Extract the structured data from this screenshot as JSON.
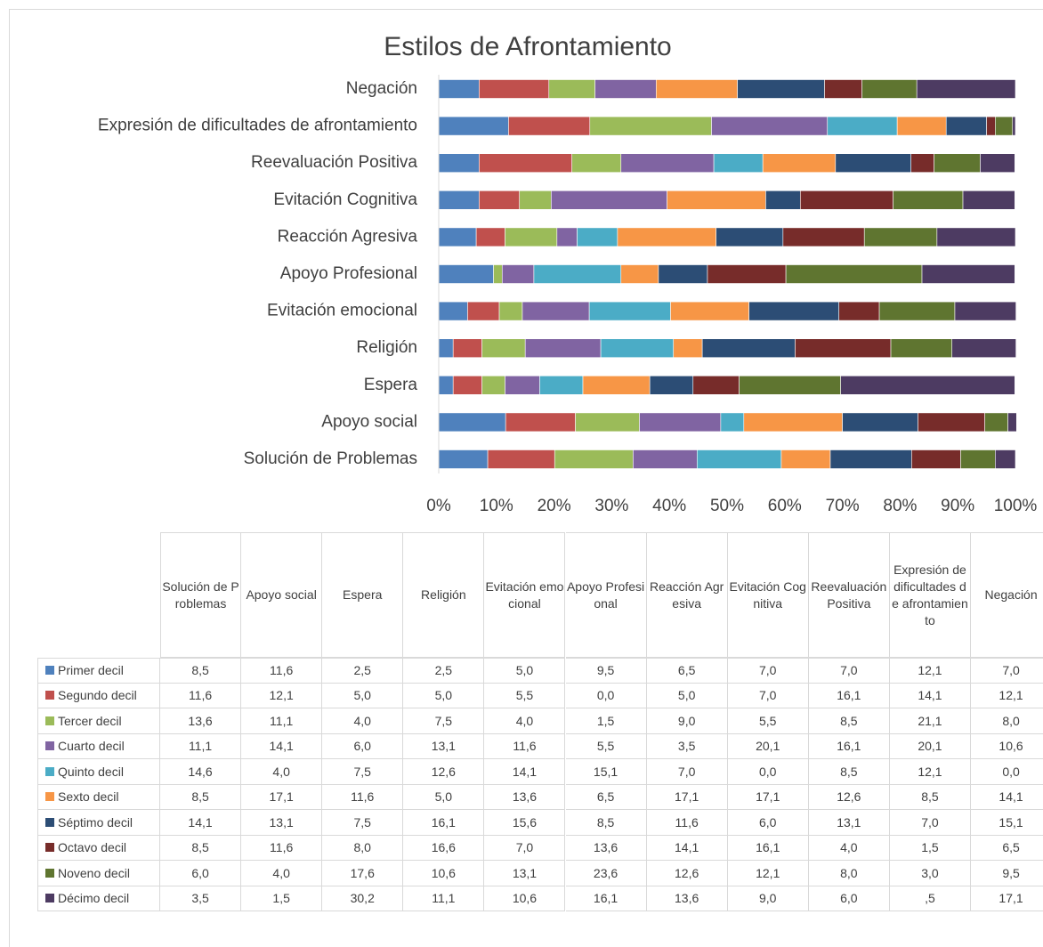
{
  "chart_data": {
    "type": "stacked_bar_100",
    "orientation": "horizontal",
    "title": "Estilos de Afrontamiento",
    "categories": [
      "Solución de Problemas",
      "Apoyo social",
      "Espera",
      "Religión",
      "Evitación emocional",
      "Apoyo Profesional",
      "Reacción Agresiva",
      "Evitación Cognitiva",
      "Reevaluación Positiva",
      "Expresión de dificultades de afrontamiento",
      "Negación"
    ],
    "series": [
      {
        "name": "Primer decil",
        "color": "#4F81BD",
        "values": [
          8.5,
          11.6,
          2.5,
          2.5,
          5.0,
          9.5,
          6.5,
          7.0,
          7.0,
          12.1,
          7.0
        ],
        "value_labels": [
          "8,5",
          "11,6",
          "2,5",
          "2,5",
          "5,0",
          "9,5",
          "6,5",
          "7,0",
          "7,0",
          "12,1",
          "7,0"
        ]
      },
      {
        "name": "Segundo decil",
        "color": "#C0504D",
        "values": [
          11.6,
          12.1,
          5.0,
          5.0,
          5.5,
          0.0,
          5.0,
          7.0,
          16.1,
          14.1,
          12.1
        ],
        "value_labels": [
          "11,6",
          "12,1",
          "5,0",
          "5,0",
          "5,5",
          "0,0",
          "5,0",
          "7,0",
          "16,1",
          "14,1",
          "12,1"
        ]
      },
      {
        "name": "Tercer decil",
        "color": "#9BBB59",
        "values": [
          13.6,
          11.1,
          4.0,
          7.5,
          4.0,
          1.5,
          9.0,
          5.5,
          8.5,
          21.1,
          8.0
        ],
        "value_labels": [
          "13,6",
          "11,1",
          "4,0",
          "7,5",
          "4,0",
          "1,5",
          "9,0",
          "5,5",
          "8,5",
          "21,1",
          "8,0"
        ]
      },
      {
        "name": "Cuarto decil",
        "color": "#8064A2",
        "values": [
          11.1,
          14.1,
          6.0,
          13.1,
          11.6,
          5.5,
          3.5,
          20.1,
          16.1,
          20.1,
          10.6
        ],
        "value_labels": [
          "11,1",
          "14,1",
          "6,0",
          "13,1",
          "11,6",
          "5,5",
          "3,5",
          "20,1",
          "16,1",
          "20,1",
          "10,6"
        ]
      },
      {
        "name": "Quinto decil",
        "color": "#4BACC6",
        "values": [
          14.6,
          4.0,
          7.5,
          12.6,
          14.1,
          15.1,
          7.0,
          0.0,
          8.5,
          12.1,
          0.0
        ],
        "value_labels": [
          "14,6",
          "4,0",
          "7,5",
          "12,6",
          "14,1",
          "15,1",
          "7,0",
          "0,0",
          "8,5",
          "12,1",
          "0,0"
        ]
      },
      {
        "name": "Sexto decil",
        "color": "#F79646",
        "values": [
          8.5,
          17.1,
          11.6,
          5.0,
          13.6,
          6.5,
          17.1,
          17.1,
          12.6,
          8.5,
          14.1
        ],
        "value_labels": [
          "8,5",
          "17,1",
          "11,6",
          "5,0",
          "13,6",
          "6,5",
          "17,1",
          "17,1",
          "12,6",
          "8,5",
          "14,1"
        ]
      },
      {
        "name": "Séptimo decil",
        "color": "#2C4D75",
        "values": [
          14.1,
          13.1,
          7.5,
          16.1,
          15.6,
          8.5,
          11.6,
          6.0,
          13.1,
          7.0,
          15.1
        ],
        "value_labels": [
          "14,1",
          "13,1",
          "7,5",
          "16,1",
          "15,6",
          "8,5",
          "11,6",
          "6,0",
          "13,1",
          "7,0",
          "15,1"
        ]
      },
      {
        "name": "Octavo decil",
        "color": "#772C2A",
        "values": [
          8.5,
          11.6,
          8.0,
          16.6,
          7.0,
          13.6,
          14.1,
          16.1,
          4.0,
          1.5,
          6.5
        ],
        "value_labels": [
          "8,5",
          "11,6",
          "8,0",
          "16,6",
          "7,0",
          "13,6",
          "14,1",
          "16,1",
          "4,0",
          "1,5",
          "6,5"
        ]
      },
      {
        "name": "Noveno decil",
        "color": "#5F7530",
        "values": [
          6.0,
          4.0,
          17.6,
          10.6,
          13.1,
          23.6,
          12.6,
          12.1,
          8.0,
          3.0,
          9.5
        ],
        "value_labels": [
          "6,0",
          "4,0",
          "17,6",
          "10,6",
          "13,1",
          "23,6",
          "12,6",
          "12,1",
          "8,0",
          "3,0",
          "9,5"
        ]
      },
      {
        "name": "Décimo decil",
        "color": "#4D3B62",
        "values": [
          3.5,
          1.5,
          30.2,
          11.1,
          10.6,
          16.1,
          13.6,
          9.0,
          6.0,
          0.5,
          17.1
        ],
        "value_labels": [
          "3,5",
          "1,5",
          "30,2",
          "11,1",
          "10,6",
          "16,1",
          "13,6",
          "9,0",
          "6,0",
          ",5",
          "17,1"
        ]
      }
    ],
    "xlim": [
      0,
      100
    ],
    "xticks": [
      {
        "value": 0,
        "label": "0%"
      },
      {
        "value": 10,
        "label": "10%"
      },
      {
        "value": 20,
        "label": "20%"
      },
      {
        "value": 30,
        "label": "30%"
      },
      {
        "value": 40,
        "label": "40%"
      },
      {
        "value": 50,
        "label": "50%"
      },
      {
        "value": 60,
        "label": "60%"
      },
      {
        "value": 70,
        "label": "70%"
      },
      {
        "value": 80,
        "label": "80%"
      },
      {
        "value": 90,
        "label": "90%"
      },
      {
        "value": 100,
        "label": "100%"
      }
    ],
    "data_table": true
  }
}
